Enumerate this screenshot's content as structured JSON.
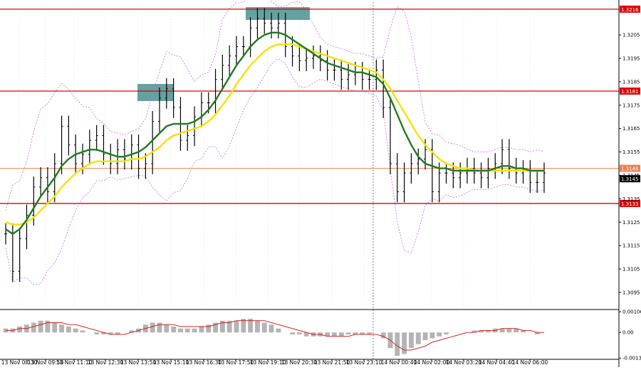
{
  "chart_data": [
    {
      "type": "line",
      "panel": "price",
      "title": "",
      "xlabel": "",
      "ylabel": "",
      "ylim": [
        1.3088,
        1.3219
      ],
      "y_ticks": [
        "1.3205",
        "1.3195",
        "1.3185",
        "1.3175",
        "1.3165",
        "1.3155",
        "1.3145",
        "1.3135",
        "1.3125",
        "1.3115",
        "1.3105",
        "1.3095"
      ],
      "x_tick_labels": [
        "13 Nov 08:30",
        "13 Nov 09:50",
        "13 Nov 11:10",
        "13 Nov 12:30",
        "13 Nov 13:50",
        "13 Nov 15:10",
        "13 Nov 16:30",
        "13 Nov 17:50",
        "13 Nov 19:10",
        "13 Nov 20:30",
        "13 Nov 21:50",
        "13 Nov 23:10",
        "14 Nov 00:40",
        "14 Nov 02:00",
        "14 Nov 03:20",
        "14 Nov 04:40",
        "14 Nov 06:00"
      ],
      "horizontal_levels": [
        {
          "value": 1.3216,
          "label": "1.3216",
          "color": "#e00000"
        },
        {
          "value": 1.3181,
          "label": "1.3181",
          "color": "#e00000"
        },
        {
          "value": 1.3133,
          "label": "1.3133",
          "color": "#e00000"
        },
        {
          "value": 1.3148,
          "label": "1.3148",
          "color": "#f08050"
        }
      ],
      "current_price_label": "1.3145",
      "series": [
        {
          "role": "price",
          "color": "#000000",
          "values": [
            1.312,
            1.3104,
            1.3118,
            1.3128,
            1.314,
            1.3144,
            1.3138,
            1.315,
            1.3166,
            1.3158,
            1.315,
            1.3154,
            1.316,
            1.3162,
            1.3154,
            1.315,
            1.3156,
            1.3152,
            1.3158,
            1.3148,
            1.315,
            1.3168,
            1.3178,
            1.3182,
            1.3174,
            1.316,
            1.3162,
            1.317,
            1.3176,
            1.3176,
            1.3186,
            1.3192,
            1.3196,
            1.32,
            1.32,
            1.3208,
            1.3212,
            1.321,
            1.3208,
            1.321,
            1.32,
            1.3196,
            1.3194,
            1.3195,
            1.3196,
            1.3194,
            1.319,
            1.319,
            1.3186,
            1.3188,
            1.3189,
            1.3186,
            1.3186,
            1.319,
            1.3174,
            1.315,
            1.3138,
            1.3146,
            1.315,
            1.3152,
            1.3156,
            1.3138,
            1.3146,
            1.3146,
            1.3144,
            1.3146,
            1.3148,
            1.3146,
            1.3144,
            1.3148,
            1.315,
            1.3156,
            1.3148,
            1.3146,
            1.3147,
            1.3142,
            1.3142,
            1.3146
          ]
        },
        {
          "role": "moving-average",
          "color": "#1f7a1f",
          "values": [
            1.3122,
            1.312,
            1.3122,
            1.3126,
            1.3131,
            1.3136,
            1.314,
            1.3144,
            1.3149,
            1.3152,
            1.3154,
            1.3155,
            1.3156,
            1.3156,
            1.3155,
            1.3154,
            1.3153,
            1.3153,
            1.3154,
            1.3155,
            1.3157,
            1.316,
            1.3163,
            1.3166,
            1.3167,
            1.3167,
            1.3167,
            1.3168,
            1.317,
            1.3173,
            1.3177,
            1.3182,
            1.3187,
            1.3192,
            1.3196,
            1.32,
            1.3203,
            1.3205,
            1.3206,
            1.3206,
            1.3205,
            1.3203,
            1.3201,
            1.3199,
            1.3197,
            1.3195,
            1.3193,
            1.3192,
            1.3191,
            1.319,
            1.3189,
            1.3189,
            1.3188,
            1.3187,
            1.3184,
            1.3178,
            1.3171,
            1.3164,
            1.3158,
            1.3153,
            1.315,
            1.3149,
            1.3148,
            1.3148,
            1.3147,
            1.3147,
            1.3147,
            1.3147,
            1.3147,
            1.3147,
            1.3148,
            1.3149,
            1.3149,
            1.3148,
            1.3148,
            1.3147,
            1.3147,
            1.3147
          ]
        },
        {
          "role": "moving-average",
          "color": "#f2e400",
          "values": [
            1.3125,
            1.3124,
            1.3124,
            1.3125,
            1.3127,
            1.313,
            1.3133,
            1.3136,
            1.314,
            1.3143,
            1.3146,
            1.3148,
            1.315,
            1.3151,
            1.3151,
            1.3151,
            1.3151,
            1.3151,
            1.3152,
            1.3152,
            1.3153,
            1.3155,
            1.3157,
            1.316,
            1.3162,
            1.3163,
            1.3164,
            1.3165,
            1.3166,
            1.3168,
            1.3171,
            1.3175,
            1.3179,
            1.3184,
            1.3188,
            1.3192,
            1.3195,
            1.3198,
            1.32,
            1.3201,
            1.3201,
            1.3201,
            1.32,
            1.3199,
            1.3198,
            1.3197,
            1.3196,
            1.3195,
            1.3194,
            1.3193,
            1.3192,
            1.3191,
            1.319,
            1.3189,
            1.3186,
            1.3182,
            1.3177,
            1.3172,
            1.3167,
            1.3162,
            1.3158,
            1.3155,
            1.3152,
            1.315,
            1.3149,
            1.3148,
            1.3148,
            1.3147,
            1.3147,
            1.3147,
            1.3147,
            1.3147,
            1.3147,
            1.3147,
            1.3147,
            1.3147,
            1.3147,
            1.3147
          ]
        }
      ]
    },
    {
      "type": "bar",
      "panel": "oscillator",
      "title": "",
      "ylim": [
        -0.00134,
        0.0011
      ],
      "y_ticks": [
        "0.00106",
        "0.00",
        "-0.00131"
      ],
      "series": [
        {
          "role": "histogram",
          "color": "#b4b4b4",
          "values": [
            0.0002,
            0.0002,
            0.0003,
            0.0004,
            0.0005,
            0.0006,
            0.0006,
            0.0005,
            0.0004,
            0.0003,
            0.0002,
            0.0001,
            0.0,
            -0.0001,
            -0.0001,
            -0.0001,
            -0.0001,
            0.0,
            0.0001,
            0.0002,
            0.0004,
            0.0005,
            0.0005,
            0.0004,
            0.0003,
            0.0002,
            0.0002,
            0.0002,
            0.0003,
            0.0004,
            0.0005,
            0.0006,
            0.0006,
            0.0006,
            0.0007,
            0.0007,
            0.0006,
            0.0005,
            0.0004,
            0.0002,
            0.0,
            -0.0001,
            -0.0001,
            -0.0002,
            -0.0002,
            -0.0002,
            -0.0002,
            -0.0002,
            -0.0002,
            -0.0001,
            -0.0001,
            -0.0001,
            -0.0001,
            0.0,
            -0.0003,
            -0.0008,
            -0.0012,
            -0.0011,
            -0.0008,
            -0.0006,
            -0.0004,
            -0.0003,
            -0.0002,
            -0.0001,
            0.0,
            0.0,
            0.0,
            0.0001,
            0.0001,
            0.0001,
            0.0002,
            0.0002,
            0.0002,
            0.0002,
            0.0001,
            0.0,
            -0.0001,
            0.0
          ]
        },
        {
          "role": "signal-line",
          "color": "#d01010",
          "values": [
            0.0001,
            0.0001,
            0.0002,
            0.0002,
            0.0003,
            0.0004,
            0.0005,
            0.0005,
            0.0005,
            0.0004,
            0.0004,
            0.0003,
            0.0002,
            0.0001,
            0.0,
            -0.0001,
            -0.0001,
            -0.0001,
            0.0,
            0.0001,
            0.0002,
            0.0003,
            0.0004,
            0.0004,
            0.0004,
            0.0003,
            0.0003,
            0.0003,
            0.0003,
            0.0003,
            0.0004,
            0.0005,
            0.0005,
            0.0006,
            0.0006,
            0.0006,
            0.0006,
            0.0006,
            0.0005,
            0.0004,
            0.0003,
            0.0002,
            0.0001,
            0.0,
            -0.0001,
            -0.0001,
            -0.0002,
            -0.0002,
            -0.0002,
            -0.0002,
            -0.0001,
            -0.0001,
            -0.0001,
            -0.0001,
            -0.0002,
            -0.0004,
            -0.0007,
            -0.0009,
            -0.0009,
            -0.0008,
            -0.0007,
            -0.0005,
            -0.0004,
            -0.0003,
            -0.0002,
            -0.0001,
            0.0,
            0.0,
            0.0001,
            0.0001,
            0.0001,
            0.0002,
            0.0002,
            0.0002,
            0.0001,
            0.0001,
            0.0,
            0.0
          ]
        }
      ]
    }
  ],
  "colors": {
    "grid": "#c8c8c8",
    "crosshair": "#606060",
    "zone_fill": "#4a9090",
    "band": "#c070e0",
    "level_label_bg": "#e00000",
    "price_label_bg": "#f08050"
  }
}
